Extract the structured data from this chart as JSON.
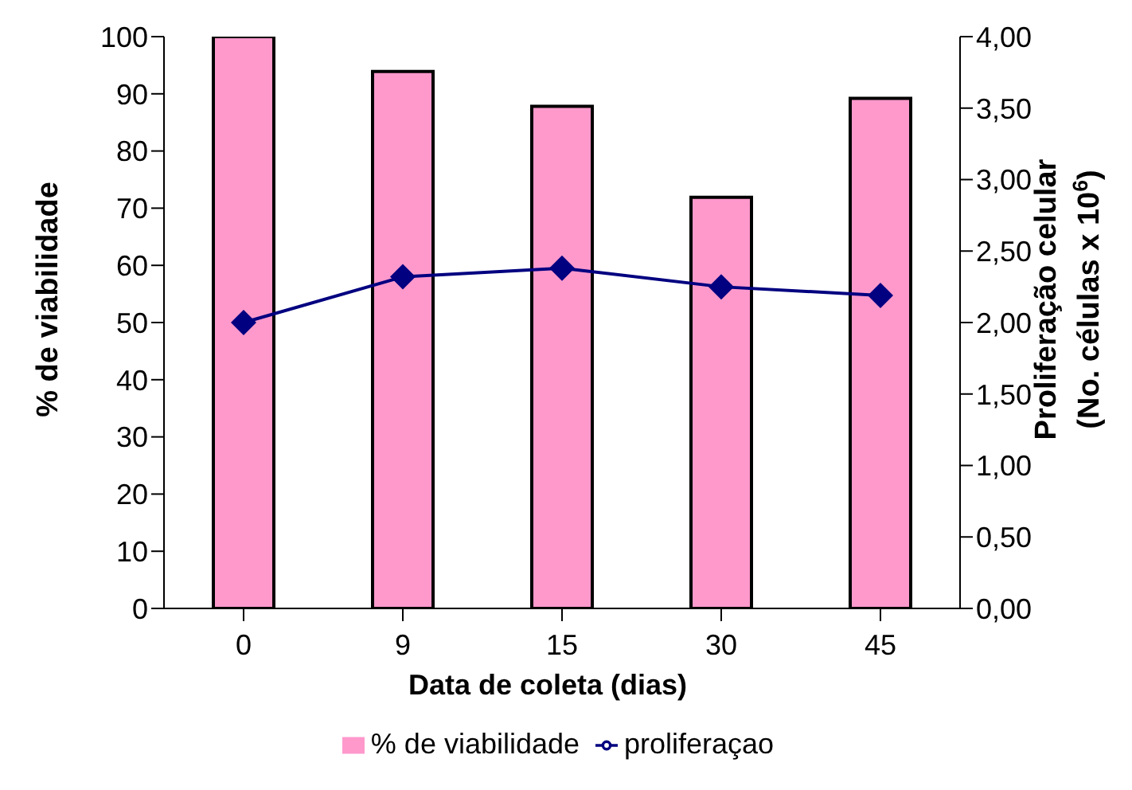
{
  "chart_data": {
    "type": "bar",
    "categories": [
      "0",
      "9",
      "15",
      "30",
      "45"
    ],
    "xlabel": "Data de coleta (dias)",
    "ylabel": "% de viabilidade",
    "y2label": "Proliferação celular\n(No. células x 10$^{6}$)",
    "series": [
      {
        "name": "% de viabilidade",
        "color": "#ff99cc",
        "values": [
          100,
          93.9,
          87.8,
          71.9,
          89.2
        ]
      },
      {
        "name": "proliferaçao",
        "type": "line",
        "axis": "y2",
        "color": "#000080",
        "values": [
          2.0,
          2.32,
          2.38,
          2.25,
          2.19
        ]
      }
    ],
    "ylim": [
      0,
      100
    ],
    "yticks": [
      0,
      10,
      20,
      30,
      40,
      50,
      60,
      70,
      80,
      90,
      100
    ],
    "y2lim": [
      0,
      4
    ],
    "y2ticks": [
      {
        "value": 0,
        "label": "0,00"
      },
      {
        "value": 0.5,
        "label": "0,50"
      },
      {
        "value": 1,
        "label": "1,00"
      },
      {
        "value": 1.5,
        "label": "1,50"
      },
      {
        "value": 2,
        "label": "2,00"
      },
      {
        "value": 2.5,
        "label": "2,50"
      },
      {
        "value": 3,
        "label": "3,00"
      },
      {
        "value": 3.5,
        "label": "3,50"
      },
      {
        "value": 4,
        "label": "4,00"
      }
    ],
    "legend": "bottom",
    "marker": "diamond",
    "grid": false
  }
}
